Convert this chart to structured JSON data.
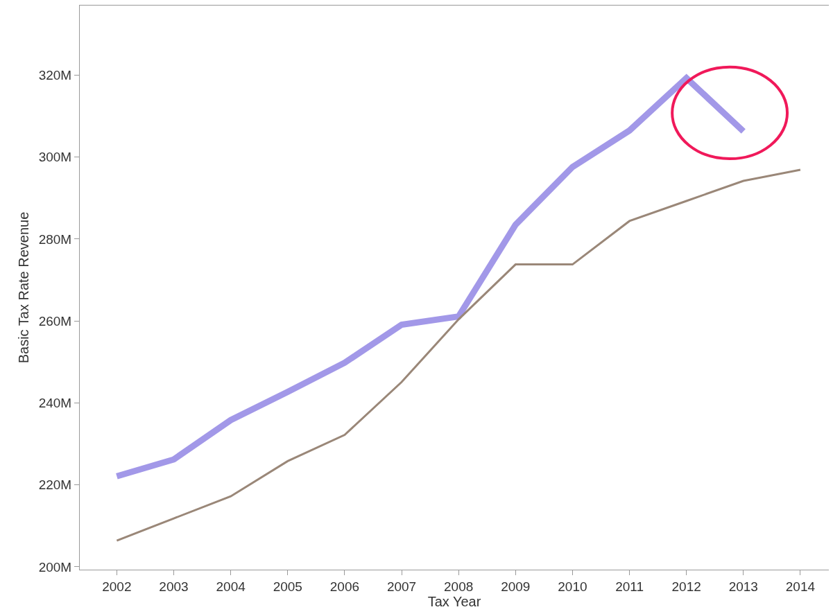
{
  "chart_data": {
    "type": "line",
    "xlabel": "Tax Year",
    "ylabel": "Basic Tax Rate Revenue",
    "x": [
      2002,
      2003,
      2004,
      2005,
      2006,
      2007,
      2008,
      2009,
      2010,
      2011,
      2012,
      2013,
      2014
    ],
    "series": [
      {
        "color": "#a298e8",
        "values": [
          222.1,
          226.2,
          235.8,
          242.7,
          249.8,
          259.1,
          261.1,
          283.5,
          297.6,
          306.5,
          319.3,
          306.3,
          null
        ]
      },
      {
        "color": "#9a8778",
        "values": [
          206.4,
          211.8,
          217.2,
          225.8,
          232.2,
          245.1,
          260.4,
          273.8,
          273.8,
          284.4,
          289.3,
          294.2,
          296.9
        ]
      }
    ],
    "xlim": [
      2001.35,
      2014.5
    ],
    "ylim": [
      199.3,
      337
    ],
    "xticks": [
      2002,
      2003,
      2004,
      2005,
      2006,
      2007,
      2008,
      2009,
      2010,
      2011,
      2012,
      2013,
      2014
    ],
    "yticks": [
      {
        "value": 200,
        "label": "200M"
      },
      {
        "value": 220,
        "label": "220M"
      },
      {
        "value": 240,
        "label": "240M"
      },
      {
        "value": 260,
        "label": "260M"
      },
      {
        "value": 280,
        "label": "280M"
      },
      {
        "value": 300,
        "label": "300M"
      },
      {
        "value": 320,
        "label": "320M"
      }
    ],
    "grid": false,
    "marker": "none"
  }
}
